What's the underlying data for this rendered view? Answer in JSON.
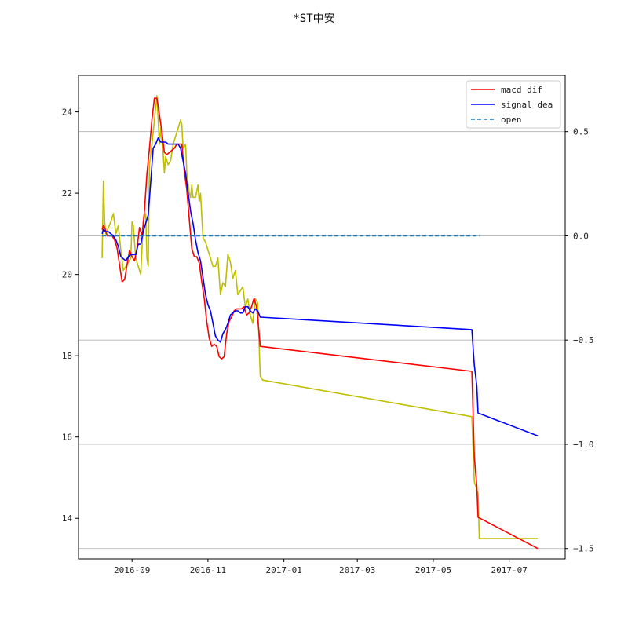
{
  "chart_data": {
    "type": "line",
    "title": "*ST中安",
    "x_ticks": [
      "2016-09",
      "2016-11",
      "2017-01",
      "2017-03",
      "2017-05",
      "2017-07"
    ],
    "left_axis": {
      "ylim": [
        13.0,
        24.9
      ],
      "ticks": [
        "14",
        "16",
        "18",
        "20",
        "22",
        "24"
      ]
    },
    "right_axis": {
      "ylim": [
        -1.55,
        0.77
      ],
      "ticks": [
        "0.5",
        "0.0",
        "−0.5",
        "−1.0",
        "−1.5"
      ],
      "grid": true
    },
    "legend": {
      "position": "top-right",
      "entries": [
        "macd dif",
        "signal dea",
        "open"
      ]
    },
    "colors": {
      "macd_dif": "#ff0000",
      "signal_dea": "#0000ff",
      "open": "#1f77b4",
      "price": "#bfbf00",
      "grid": "#b0b0b0"
    },
    "series": [
      {
        "key": "price",
        "axis": "left",
        "style": "solid",
        "points": [
          [
            "2016-08-08",
            20.4
          ],
          [
            "2016-08-09",
            22.3
          ],
          [
            "2016-08-10",
            21.3
          ],
          [
            "2016-08-11",
            21.0
          ],
          [
            "2016-08-15",
            21.3
          ],
          [
            "2016-08-17",
            21.5
          ],
          [
            "2016-08-19",
            21.0
          ],
          [
            "2016-08-21",
            21.2
          ],
          [
            "2016-08-23",
            20.6
          ],
          [
            "2016-08-25",
            20.1
          ],
          [
            "2016-08-27",
            20.2
          ],
          [
            "2016-08-29",
            20.3
          ],
          [
            "2016-08-31",
            20.4
          ],
          [
            "2016-09-01",
            21.3
          ],
          [
            "2016-09-02",
            21.2
          ],
          [
            "2016-09-04",
            20.4
          ],
          [
            "2016-09-06",
            20.2
          ],
          [
            "2016-09-08",
            20.0
          ],
          [
            "2016-09-10",
            21.3
          ],
          [
            "2016-09-12",
            21.5
          ],
          [
            "2016-09-13",
            20.4
          ],
          [
            "2016-09-14",
            20.2
          ],
          [
            "2016-09-15",
            22.7
          ],
          [
            "2016-09-17",
            23.2
          ],
          [
            "2016-09-19",
            23.8
          ],
          [
            "2016-09-21",
            24.4
          ],
          [
            "2016-09-23",
            23.2
          ],
          [
            "2016-09-24",
            23.6
          ],
          [
            "2016-09-26",
            23.0
          ],
          [
            "2016-09-27",
            22.5
          ],
          [
            "2016-09-28",
            22.9
          ],
          [
            "2016-09-30",
            22.7
          ],
          [
            "2016-10-02",
            22.8
          ],
          [
            "2016-10-04",
            23.2
          ],
          [
            "2016-10-06",
            23.4
          ],
          [
            "2016-10-08",
            23.6
          ],
          [
            "2016-10-10",
            23.8
          ],
          [
            "2016-10-11",
            23.7
          ],
          [
            "2016-10-12",
            23.1
          ],
          [
            "2016-10-14",
            23.2
          ],
          [
            "2016-10-15",
            22.5
          ],
          [
            "2016-10-17",
            22.0
          ],
          [
            "2016-10-18",
            21.9
          ],
          [
            "2016-10-19",
            22.2
          ],
          [
            "2016-10-20",
            21.9
          ],
          [
            "2016-10-22",
            21.9
          ],
          [
            "2016-10-24",
            22.2
          ],
          [
            "2016-10-25",
            21.8
          ],
          [
            "2016-10-26",
            22.0
          ],
          [
            "2016-10-28",
            20.9
          ],
          [
            "2016-10-30",
            20.8
          ],
          [
            "2016-11-01",
            20.6
          ],
          [
            "2016-11-03",
            20.4
          ],
          [
            "2016-11-05",
            20.2
          ],
          [
            "2016-11-07",
            20.2
          ],
          [
            "2016-11-09",
            20.4
          ],
          [
            "2016-11-11",
            19.5
          ],
          [
            "2016-11-13",
            19.8
          ],
          [
            "2016-11-15",
            19.7
          ],
          [
            "2016-11-17",
            20.5
          ],
          [
            "2016-11-19",
            20.3
          ],
          [
            "2016-11-21",
            19.9
          ],
          [
            "2016-11-23",
            20.1
          ],
          [
            "2016-11-25",
            19.5
          ],
          [
            "2016-11-27",
            19.6
          ],
          [
            "2016-11-29",
            19.7
          ],
          [
            "2016-12-01",
            19.2
          ],
          [
            "2016-12-03",
            19.4
          ],
          [
            "2016-12-05",
            19.0
          ],
          [
            "2016-12-07",
            18.8
          ],
          [
            "2016-12-09",
            19.4
          ],
          [
            "2016-12-11",
            19.3
          ],
          [
            "2016-12-13",
            17.5
          ],
          [
            "2016-12-15",
            17.4
          ],
          [
            "2017-06-01",
            16.5
          ],
          [
            "2017-06-03",
            14.9
          ],
          [
            "2017-06-06",
            14.6
          ],
          [
            "2017-06-07",
            13.5
          ],
          [
            "2017-07-24",
            13.5
          ]
        ]
      },
      {
        "key": "macd_dif",
        "axis": "right",
        "style": "solid",
        "points": [
          [
            "2016-08-08",
            0.03
          ],
          [
            "2016-08-09",
            0.05
          ],
          [
            "2016-08-10",
            0.04
          ],
          [
            "2016-08-12",
            0.0
          ],
          [
            "2016-08-14",
            0.0
          ],
          [
            "2016-08-16",
            0.0
          ],
          [
            "2016-08-18",
            -0.02
          ],
          [
            "2016-08-20",
            -0.06
          ],
          [
            "2016-08-22",
            -0.14
          ],
          [
            "2016-08-24",
            -0.22
          ],
          [
            "2016-08-26",
            -0.21
          ],
          [
            "2016-08-28",
            -0.14
          ],
          [
            "2016-08-30",
            -0.07
          ],
          [
            "2016-09-01",
            -0.1
          ],
          [
            "2016-09-03",
            -0.12
          ],
          [
            "2016-09-05",
            -0.06
          ],
          [
            "2016-09-07",
            0.04
          ],
          [
            "2016-09-09",
            0.0
          ],
          [
            "2016-09-11",
            0.12
          ],
          [
            "2016-09-13",
            0.3
          ],
          [
            "2016-09-15",
            0.42
          ],
          [
            "2016-09-17",
            0.56
          ],
          [
            "2016-09-19",
            0.66
          ],
          [
            "2016-09-21",
            0.66
          ],
          [
            "2016-09-23",
            0.58
          ],
          [
            "2016-09-25",
            0.5
          ],
          [
            "2016-09-27",
            0.4
          ],
          [
            "2016-09-29",
            0.39
          ],
          [
            "2016-10-01",
            0.4
          ],
          [
            "2016-10-03",
            0.41
          ],
          [
            "2016-10-05",
            0.42
          ],
          [
            "2016-10-07",
            0.44
          ],
          [
            "2016-10-09",
            0.44
          ],
          [
            "2016-10-11",
            0.44
          ],
          [
            "2016-10-13",
            0.31
          ],
          [
            "2016-10-15",
            0.22
          ],
          [
            "2016-10-17",
            0.08
          ],
          [
            "2016-10-19",
            -0.06
          ],
          [
            "2016-10-21",
            -0.1
          ],
          [
            "2016-10-23",
            -0.1
          ],
          [
            "2016-10-25",
            -0.13
          ],
          [
            "2016-10-27",
            -0.22
          ],
          [
            "2016-10-29",
            -0.3
          ],
          [
            "2016-10-31",
            -0.41
          ],
          [
            "2016-11-02",
            -0.49
          ],
          [
            "2016-11-04",
            -0.53
          ],
          [
            "2016-11-06",
            -0.52
          ],
          [
            "2016-11-08",
            -0.53
          ],
          [
            "2016-11-10",
            -0.58
          ],
          [
            "2016-11-12",
            -0.59
          ],
          [
            "2016-11-14",
            -0.58
          ],
          [
            "2016-11-16",
            -0.47
          ],
          [
            "2016-11-18",
            -0.41
          ],
          [
            "2016-11-20",
            -0.39
          ],
          [
            "2016-11-22",
            -0.36
          ],
          [
            "2016-11-24",
            -0.35
          ],
          [
            "2016-11-26",
            -0.35
          ],
          [
            "2016-11-28",
            -0.35
          ],
          [
            "2016-11-30",
            -0.34
          ],
          [
            "2016-12-02",
            -0.38
          ],
          [
            "2016-12-04",
            -0.37
          ],
          [
            "2016-12-06",
            -0.34
          ],
          [
            "2016-12-08",
            -0.3
          ],
          [
            "2016-12-10",
            -0.34
          ],
          [
            "2016-12-12",
            -0.46
          ],
          [
            "2016-12-13",
            -0.53
          ],
          [
            "2017-06-01",
            -0.65
          ],
          [
            "2017-06-03",
            -1.06
          ],
          [
            "2017-06-05",
            -1.2
          ],
          [
            "2017-06-06",
            -1.35
          ],
          [
            "2017-07-24",
            -1.5
          ]
        ]
      },
      {
        "key": "signal_dea",
        "axis": "right",
        "style": "solid",
        "points": [
          [
            "2016-08-08",
            0.01
          ],
          [
            "2016-08-09",
            0.03
          ],
          [
            "2016-08-11",
            0.02
          ],
          [
            "2016-08-13",
            0.02
          ],
          [
            "2016-08-15",
            0.01
          ],
          [
            "2016-08-17",
            0.0
          ],
          [
            "2016-08-19",
            -0.02
          ],
          [
            "2016-08-21",
            -0.05
          ],
          [
            "2016-08-23",
            -0.1
          ],
          [
            "2016-08-25",
            -0.11
          ],
          [
            "2016-08-27",
            -0.12
          ],
          [
            "2016-08-29",
            -0.1
          ],
          [
            "2016-08-31",
            -0.09
          ],
          [
            "2016-09-02",
            -0.09
          ],
          [
            "2016-09-04",
            -0.09
          ],
          [
            "2016-09-06",
            -0.04
          ],
          [
            "2016-09-08",
            -0.04
          ],
          [
            "2016-09-10",
            0.02
          ],
          [
            "2016-09-12",
            0.06
          ],
          [
            "2016-09-14",
            0.1
          ],
          [
            "2016-09-16",
            0.26
          ],
          [
            "2016-09-18",
            0.42
          ],
          [
            "2016-09-20",
            0.44
          ],
          [
            "2016-09-22",
            0.47
          ],
          [
            "2016-09-24",
            0.45
          ],
          [
            "2016-09-26",
            0.45
          ],
          [
            "2016-09-28",
            0.45
          ],
          [
            "2016-09-30",
            0.44
          ],
          [
            "2016-10-02",
            0.44
          ],
          [
            "2016-10-04",
            0.44
          ],
          [
            "2016-10-06",
            0.44
          ],
          [
            "2016-10-08",
            0.44
          ],
          [
            "2016-10-10",
            0.42
          ],
          [
            "2016-10-12",
            0.36
          ],
          [
            "2016-10-14",
            0.3
          ],
          [
            "2016-10-16",
            0.21
          ],
          [
            "2016-10-18",
            0.12
          ],
          [
            "2016-10-20",
            0.06
          ],
          [
            "2016-10-22",
            -0.02
          ],
          [
            "2016-10-24",
            -0.08
          ],
          [
            "2016-10-26",
            -0.12
          ],
          [
            "2016-10-28",
            -0.2
          ],
          [
            "2016-10-30",
            -0.28
          ],
          [
            "2016-11-01",
            -0.33
          ],
          [
            "2016-11-03",
            -0.36
          ],
          [
            "2016-11-05",
            -0.42
          ],
          [
            "2016-11-07",
            -0.48
          ],
          [
            "2016-11-09",
            -0.5
          ],
          [
            "2016-11-11",
            -0.51
          ],
          [
            "2016-11-13",
            -0.47
          ],
          [
            "2016-11-15",
            -0.45
          ],
          [
            "2016-11-17",
            -0.42
          ],
          [
            "2016-11-19",
            -0.38
          ],
          [
            "2016-11-21",
            -0.37
          ],
          [
            "2016-11-23",
            -0.36
          ],
          [
            "2016-11-25",
            -0.36
          ],
          [
            "2016-11-27",
            -0.37
          ],
          [
            "2016-11-29",
            -0.37
          ],
          [
            "2016-12-01",
            -0.34
          ],
          [
            "2016-12-03",
            -0.34
          ],
          [
            "2016-12-05",
            -0.36
          ],
          [
            "2016-12-07",
            -0.37
          ],
          [
            "2016-12-09",
            -0.35
          ],
          [
            "2016-12-11",
            -0.36
          ],
          [
            "2016-12-13",
            -0.39
          ],
          [
            "2017-06-01",
            -0.45
          ],
          [
            "2017-06-03",
            -0.62
          ],
          [
            "2017-06-05",
            -0.72
          ],
          [
            "2017-06-06",
            -0.85
          ],
          [
            "2017-07-24",
            -0.96
          ]
        ]
      },
      {
        "key": "open",
        "axis": "right",
        "style": "dashed",
        "points": [
          [
            "2016-08-08",
            0.0
          ],
          [
            "2017-06-07",
            0.0
          ]
        ]
      }
    ]
  }
}
